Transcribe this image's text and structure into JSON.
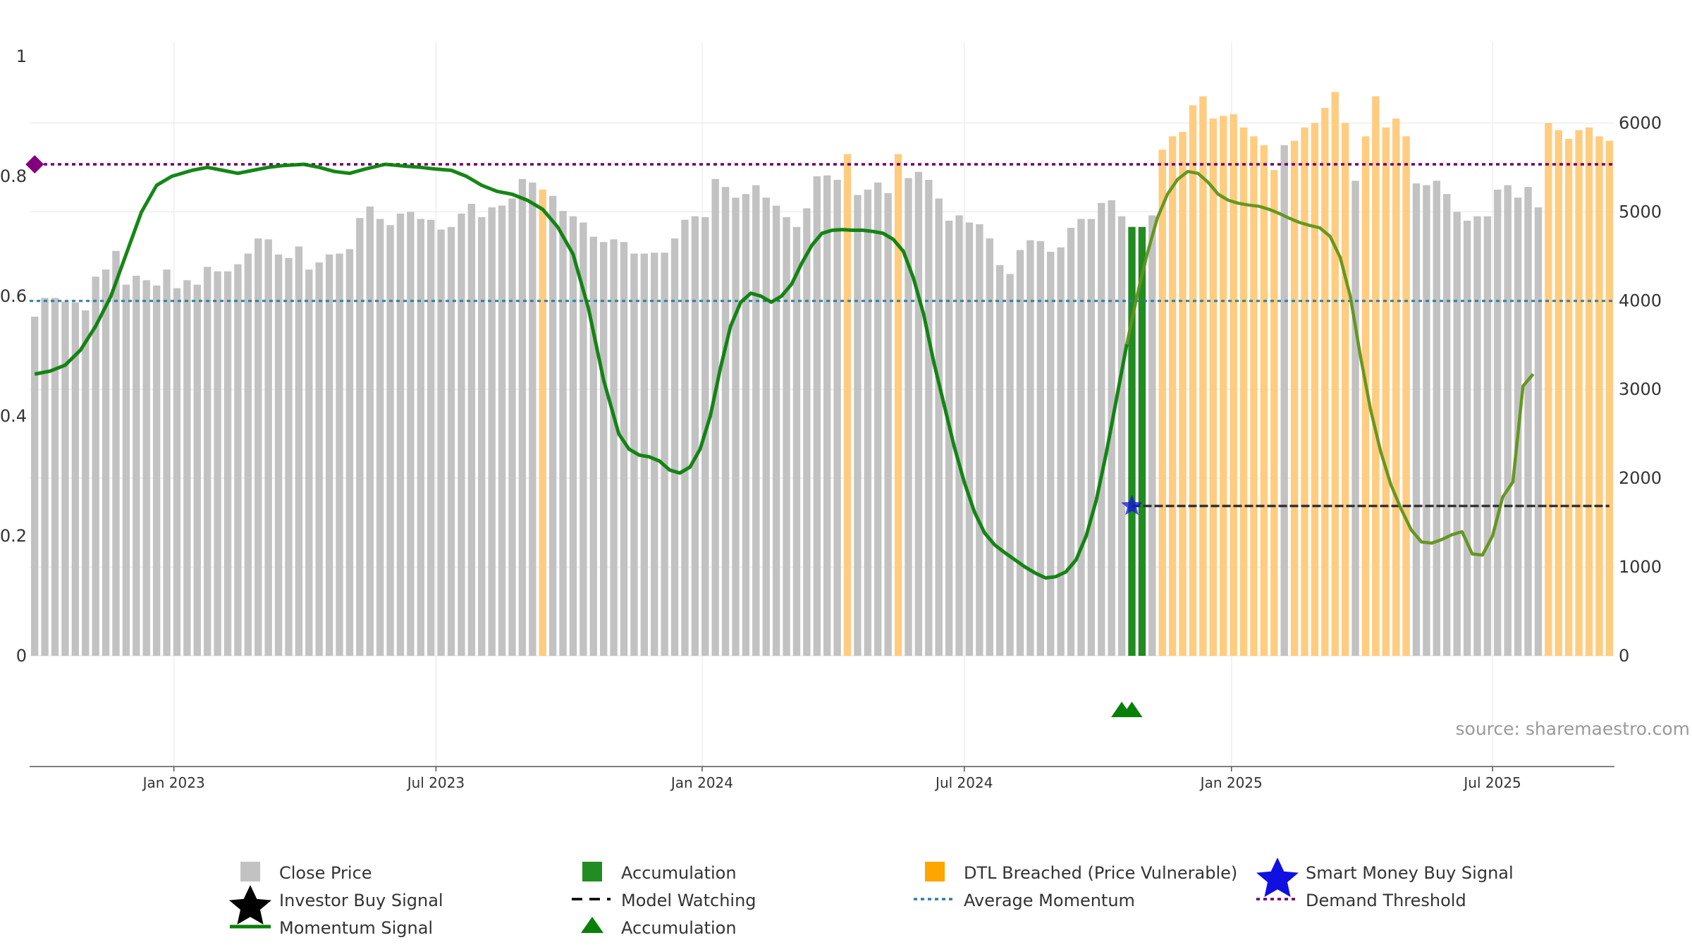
{
  "chart_data": {
    "type": "bar",
    "source": "source: sharemaestro.com",
    "left_axis": {
      "min": 0,
      "max": 1,
      "ticks": [
        "0",
        "0.2",
        "0.4",
        "0.6",
        "0.8",
        "1"
      ]
    },
    "right_axis": {
      "min": 0,
      "max": 6750,
      "ticks": [
        "0",
        "1000",
        "2000",
        "3000",
        "4000",
        "5000",
        "6000"
      ]
    },
    "x_axis": {
      "start_week": 0,
      "end_week": 156,
      "ticks": [
        {
          "label": "Jan 2023",
          "week": 14.2
        },
        {
          "label": "Jul 2023",
          "week": 40.0
        },
        {
          "label": "Jan 2024",
          "week": 66.2
        },
        {
          "label": "Jul 2024",
          "week": 92.0
        },
        {
          "label": "Jan 2025",
          "week": 118.3
        },
        {
          "label": "Jul 2025",
          "week": 144.0
        }
      ]
    },
    "thresholds": {
      "demand_threshold": 0.82,
      "average_momentum": 0.592
    },
    "model_watching": {
      "value": 0.25,
      "from_week": 108.5,
      "to_week": 155.5
    },
    "smart_money_buy_signal": {
      "week": 108.5,
      "value": 0.25
    },
    "demand_marker": {
      "week": 0.5,
      "value": 0.82
    },
    "accumulation_triangles": [
      107.5,
      108.5
    ],
    "price_series": {
      "name": "Close Price",
      "values": [
        3820,
        4030,
        4030,
        3990,
        3980,
        3890,
        4270,
        4350,
        4560,
        4180,
        4280,
        4230,
        4170,
        4350,
        4140,
        4230,
        4180,
        4380,
        4330,
        4330,
        4410,
        4530,
        4700,
        4690,
        4520,
        4480,
        4610,
        4350,
        4430,
        4520,
        4530,
        4580,
        4930,
        5060,
        4920,
        4850,
        4980,
        5000,
        4920,
        4910,
        4800,
        4830,
        4980,
        5090,
        4940,
        5050,
        5070,
        5150,
        5370,
        5330,
        5250,
        5180,
        5010,
        4950,
        4880,
        4720,
        4660,
        4690,
        4660,
        4530,
        4530,
        4540,
        4540,
        4700,
        4910,
        4950,
        4940,
        5370,
        5280,
        5160,
        5200,
        5300,
        5160,
        5070,
        4940,
        4830,
        5040,
        5400,
        5410,
        5360,
        5650,
        5190,
        5250,
        5330,
        5210,
        5650,
        5380,
        5450,
        5360,
        5150,
        4900,
        4960,
        4880,
        4860,
        4700,
        4400,
        4300,
        4570,
        4680,
        4670,
        4550,
        4600,
        4820,
        4920,
        4920,
        5100,
        5130,
        4950,
        4830,
        4830,
        4960,
        5700,
        5850,
        5900,
        6200,
        6300,
        6050,
        6080,
        6100,
        5950,
        5850,
        5750,
        5470,
        5750,
        5800,
        5950,
        6000,
        6170,
        6350,
        6000,
        5350,
        5850,
        6300,
        5950,
        6050,
        5850,
        5320,
        5300,
        5350,
        5200,
        5000,
        4900,
        4950,
        4950,
        5250,
        5300,
        5160,
        5280,
        5050,
        6000,
        5920,
        5820,
        5920,
        5950,
        5850,
        5800
      ],
      "types": [
        "C",
        "C",
        "C",
        "C",
        "C",
        "C",
        "C",
        "C",
        "C",
        "C",
        "C",
        "C",
        "C",
        "C",
        "C",
        "C",
        "C",
        "C",
        "C",
        "C",
        "C",
        "C",
        "C",
        "C",
        "C",
        "C",
        "C",
        "C",
        "C",
        "C",
        "C",
        "C",
        "C",
        "C",
        "C",
        "C",
        "C",
        "C",
        "C",
        "C",
        "C",
        "C",
        "C",
        "C",
        "C",
        "C",
        "C",
        "C",
        "C",
        "C",
        "D",
        "C",
        "C",
        "C",
        "C",
        "C",
        "C",
        "C",
        "C",
        "C",
        "C",
        "C",
        "C",
        "C",
        "C",
        "C",
        "C",
        "C",
        "C",
        "C",
        "C",
        "C",
        "C",
        "C",
        "C",
        "C",
        "C",
        "C",
        "C",
        "C",
        "D",
        "C",
        "C",
        "C",
        "C",
        "D",
        "C",
        "C",
        "C",
        "C",
        "C",
        "C",
        "C",
        "C",
        "C",
        "C",
        "C",
        "C",
        "C",
        "C",
        "C",
        "C",
        "C",
        "C",
        "C",
        "C",
        "C",
        "C",
        "A",
        "A",
        "C",
        "D",
        "D",
        "D",
        "D",
        "D",
        "D",
        "D",
        "D",
        "D",
        "D",
        "D",
        "D",
        "C",
        "D",
        "D",
        "D",
        "D",
        "D",
        "D",
        "C",
        "D",
        "D",
        "D",
        "D",
        "D",
        "C",
        "C",
        "C",
        "C",
        "C",
        "C",
        "C",
        "C",
        "C",
        "C",
        "C",
        "C",
        "C",
        "D",
        "D",
        "D",
        "D",
        "D",
        "D",
        "D"
      ]
    },
    "momentum_series": {
      "name": "Momentum Signal",
      "points": [
        [
          0.5,
          0.47
        ],
        [
          2,
          0.475
        ],
        [
          3.5,
          0.485
        ],
        [
          5,
          0.51
        ],
        [
          6.5,
          0.55
        ],
        [
          8,
          0.6
        ],
        [
          9.5,
          0.67
        ],
        [
          11,
          0.74
        ],
        [
          12.5,
          0.785
        ],
        [
          14,
          0.8
        ],
        [
          16,
          0.81
        ],
        [
          17.5,
          0.815
        ],
        [
          19,
          0.81
        ],
        [
          20.5,
          0.805
        ],
        [
          22,
          0.81
        ],
        [
          23.5,
          0.815
        ],
        [
          25,
          0.818
        ],
        [
          27,
          0.82
        ],
        [
          28.5,
          0.815
        ],
        [
          30,
          0.808
        ],
        [
          31.5,
          0.805
        ],
        [
          33,
          0.812
        ],
        [
          35,
          0.82
        ],
        [
          37,
          0.817
        ],
        [
          38.5,
          0.815
        ],
        [
          40,
          0.812
        ],
        [
          41.5,
          0.81
        ],
        [
          43,
          0.8
        ],
        [
          44.5,
          0.785
        ],
        [
          46,
          0.775
        ],
        [
          47.5,
          0.77
        ],
        [
          49,
          0.76
        ],
        [
          50.5,
          0.745
        ],
        [
          52,
          0.715
        ],
        [
          53.5,
          0.67
        ],
        [
          55,
          0.58
        ],
        [
          56.5,
          0.46
        ],
        [
          58,
          0.37
        ],
        [
          59,
          0.345
        ],
        [
          60,
          0.335
        ],
        [
          61,
          0.332
        ],
        [
          62,
          0.325
        ],
        [
          63,
          0.31
        ],
        [
          64,
          0.305
        ],
        [
          65,
          0.315
        ],
        [
          66,
          0.345
        ],
        [
          67,
          0.4
        ],
        [
          68,
          0.48
        ],
        [
          69,
          0.55
        ],
        [
          70,
          0.59
        ],
        [
          71,
          0.605
        ],
        [
          72,
          0.6
        ],
        [
          73,
          0.59
        ],
        [
          74,
          0.6
        ],
        [
          75,
          0.62
        ],
        [
          76,
          0.655
        ],
        [
          77,
          0.685
        ],
        [
          78,
          0.705
        ],
        [
          79,
          0.71
        ],
        [
          80,
          0.711
        ],
        [
          81,
          0.71
        ],
        [
          82,
          0.71
        ],
        [
          83,
          0.708
        ],
        [
          84,
          0.705
        ],
        [
          85,
          0.695
        ],
        [
          86,
          0.675
        ],
        [
          87,
          0.63
        ],
        [
          88,
          0.57
        ],
        [
          89,
          0.49
        ],
        [
          90,
          0.42
        ],
        [
          91,
          0.35
        ],
        [
          92,
          0.29
        ],
        [
          93,
          0.24
        ],
        [
          94,
          0.205
        ],
        [
          95,
          0.185
        ],
        [
          96,
          0.172
        ],
        [
          97,
          0.16
        ],
        [
          98,
          0.148
        ],
        [
          99,
          0.138
        ],
        [
          100,
          0.13
        ],
        [
          101,
          0.132
        ],
        [
          102,
          0.14
        ],
        [
          103,
          0.16
        ],
        [
          104,
          0.2
        ],
        [
          105,
          0.26
        ],
        [
          106,
          0.34
        ],
        [
          107,
          0.43
        ],
        [
          108,
          0.52
        ],
        [
          109,
          0.6
        ],
        [
          110,
          0.67
        ],
        [
          111,
          0.73
        ],
        [
          112,
          0.77
        ],
        [
          113,
          0.795
        ],
        [
          114,
          0.808
        ],
        [
          115,
          0.805
        ],
        [
          116,
          0.79
        ],
        [
          117,
          0.77
        ],
        [
          118,
          0.76
        ],
        [
          119,
          0.755
        ],
        [
          120,
          0.752
        ],
        [
          121,
          0.75
        ],
        [
          122,
          0.745
        ],
        [
          123,
          0.738
        ],
        [
          124,
          0.73
        ],
        [
          125,
          0.723
        ],
        [
          126,
          0.718
        ],
        [
          127,
          0.714
        ],
        [
          128,
          0.7
        ],
        [
          129,
          0.665
        ],
        [
          130,
          0.6
        ],
        [
          131,
          0.5
        ],
        [
          132,
          0.41
        ],
        [
          133,
          0.34
        ],
        [
          134,
          0.285
        ],
        [
          135,
          0.245
        ],
        [
          136,
          0.21
        ],
        [
          137,
          0.19
        ],
        [
          138,
          0.188
        ],
        [
          139,
          0.194
        ],
        [
          140,
          0.202
        ],
        [
          141,
          0.207
        ],
        [
          142,
          0.17
        ],
        [
          143,
          0.168
        ],
        [
          144,
          0.2
        ],
        [
          145,
          0.265
        ],
        [
          146,
          0.29
        ],
        [
          147,
          0.45
        ],
        [
          148,
          0.47
        ]
      ]
    }
  },
  "legend": {
    "close_price": "Close Price",
    "accumulation": "Accumulation",
    "dtl_breached": "DTL Breached (Price Vulnerable)",
    "smart_money": "Smart Money Buy Signal",
    "investor_buy": "Investor Buy Signal",
    "model_watching": "Model Watching",
    "average_momentum": "Average Momentum",
    "demand_threshold": "Demand Threshold",
    "momentum_signal": "Momentum Signal",
    "accumulation_triangle": "Accumulation"
  },
  "colors": {
    "close_price": "#c2c2c2",
    "accumulation": "#228b22",
    "dtl_breached": "#ffcc80",
    "momentum_green": "#098009",
    "momentum_olive": "#5f9418",
    "smart_money": "#1010e0",
    "average_momentum": "#2e7fa0",
    "demand_threshold": "#6a006a",
    "model_watching": "#333333"
  }
}
